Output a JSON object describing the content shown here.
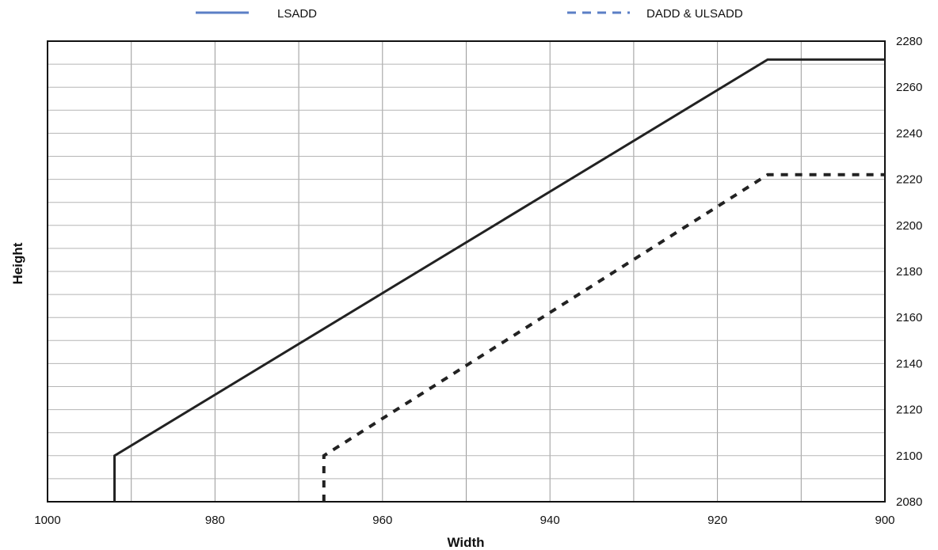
{
  "chart_data": {
    "type": "line",
    "title": "",
    "xlabel": "Width",
    "ylabel": "Height",
    "xlim": [
      1000,
      900
    ],
    "ylim": [
      2080,
      2280
    ],
    "x_ticks": [
      1000,
      980,
      960,
      940,
      920,
      900
    ],
    "y_ticks": [
      2080,
      2100,
      2120,
      2140,
      2160,
      2180,
      2200,
      2220,
      2240,
      2260,
      2280
    ],
    "x_axis_reversed": true,
    "y_axis_position": "right",
    "grid": true,
    "legend_position": "top",
    "series": [
      {
        "name": "LSADD",
        "style": "solid",
        "color": "#222222",
        "legend_color": "#5b7fc6",
        "points": [
          [
            992,
            2080
          ],
          [
            992,
            2100
          ],
          [
            914,
            2272
          ],
          [
            900,
            2272
          ]
        ]
      },
      {
        "name": "DADD & ULSADD",
        "style": "dashed",
        "color": "#222222",
        "legend_color": "#5b7fc6",
        "points": [
          [
            967,
            2080
          ],
          [
            967,
            2100
          ],
          [
            914,
            2222
          ],
          [
            900,
            2222
          ]
        ]
      }
    ]
  }
}
